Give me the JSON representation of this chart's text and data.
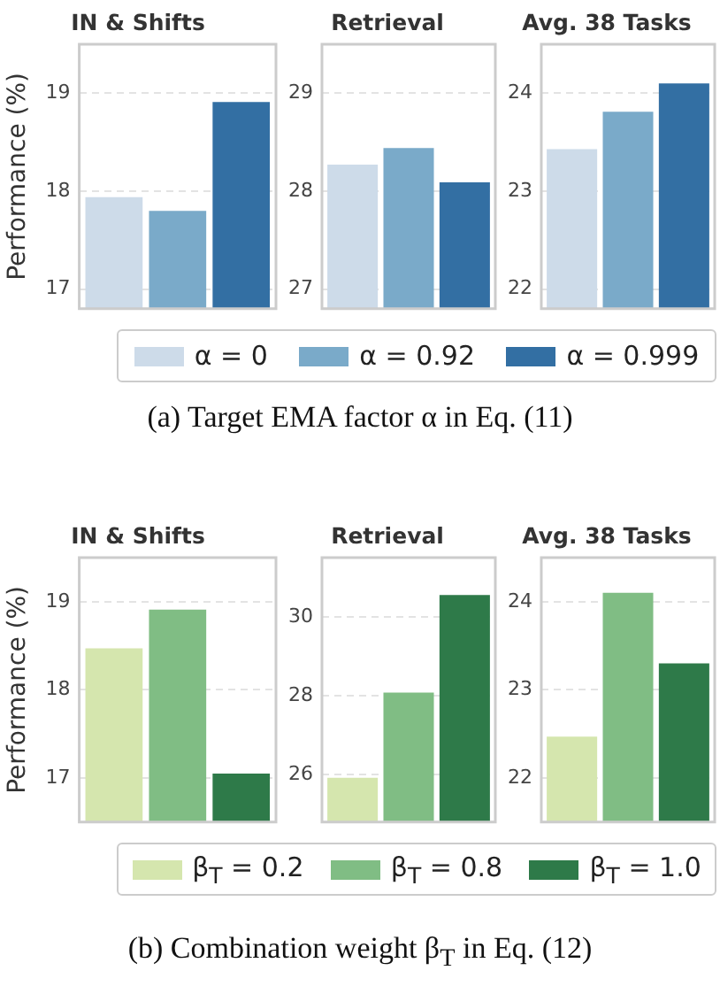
{
  "chart_data": [
    {
      "type": "bar",
      "title": "IN & Shifts",
      "ylabel": "Performance (%)",
      "categories": [
        null
      ],
      "ylim": [
        16.8,
        19.5
      ],
      "yticks": [
        17,
        18,
        19
      ],
      "grid": "y",
      "series": [
        {
          "color": "#cddbe9",
          "values": [
            17.94
          ]
        },
        {
          "color": "#7aaac9",
          "values": [
            17.8
          ]
        },
        {
          "color": "#336fa3",
          "values": [
            18.91
          ]
        }
      ]
    },
    {
      "type": "bar",
      "title": "Retrieval",
      "categories": [
        null
      ],
      "ylim": [
        26.8,
        29.5
      ],
      "yticks": [
        27,
        28,
        29
      ],
      "grid": "y",
      "legend": "bottom",
      "annotations": [
        "(a) Target EMA factor α in Eq. (11)"
      ],
      "series": [
        {
          "name": "α = 0",
          "color": "#cddbe9",
          "values": [
            28.27
          ]
        },
        {
          "name": "α = 0.92",
          "color": "#7aaac9",
          "values": [
            28.44
          ]
        },
        {
          "name": "α = 0.999",
          "color": "#336fa3",
          "values": [
            28.09
          ]
        }
      ]
    },
    {
      "type": "bar",
      "title": "Avg. 38 Tasks",
      "categories": [
        null
      ],
      "ylim": [
        21.8,
        24.5
      ],
      "yticks": [
        22,
        23,
        24
      ],
      "grid": "y",
      "series": [
        {
          "color": "#cddbe9",
          "values": [
            23.43
          ]
        },
        {
          "color": "#7aaac9",
          "values": [
            23.81
          ]
        },
        {
          "color": "#336fa3",
          "values": [
            24.1
          ]
        }
      ]
    },
    {
      "type": "bar",
      "title": "IN & Shifts",
      "ylabel": "Performance (%)",
      "categories": [
        null
      ],
      "ylim": [
        16.5,
        19.5
      ],
      "yticks": [
        17,
        18,
        19
      ],
      "grid": "y",
      "series": [
        {
          "color": "#d5e6ae",
          "values": [
            18.47
          ]
        },
        {
          "color": "#80bd84",
          "values": [
            18.91
          ]
        },
        {
          "color": "#2e7a49",
          "values": [
            17.05
          ]
        }
      ]
    },
    {
      "type": "bar",
      "title": "Retrieval",
      "categories": [
        null
      ],
      "ylim": [
        24.8,
        31.5
      ],
      "yticks": [
        26,
        28,
        30
      ],
      "grid": "y",
      "legend": "bottom",
      "annotations": [
        "(b) Combination weight β$_{T}$ in Eq. (12)"
      ],
      "series": [
        {
          "name": "β$_{T}$ = 0.2",
          "color": "#d5e6ae",
          "values": [
            25.92
          ]
        },
        {
          "name": "β$_{T}$ = 0.8",
          "color": "#80bd84",
          "values": [
            28.08
          ]
        },
        {
          "name": "β$_{T}$ = 1.0",
          "color": "#2e7a49",
          "values": [
            30.55
          ]
        }
      ]
    },
    {
      "type": "bar",
      "title": "Avg. 38 Tasks",
      "categories": [
        null
      ],
      "ylim": [
        21.5,
        24.5
      ],
      "yticks": [
        22,
        23,
        24
      ],
      "grid": "y",
      "series": [
        {
          "color": "#d5e6ae",
          "values": [
            22.47
          ]
        },
        {
          "color": "#80bd84",
          "values": [
            24.1
          ]
        },
        {
          "color": "#2e7a49",
          "values": [
            23.3
          ]
        }
      ]
    }
  ]
}
